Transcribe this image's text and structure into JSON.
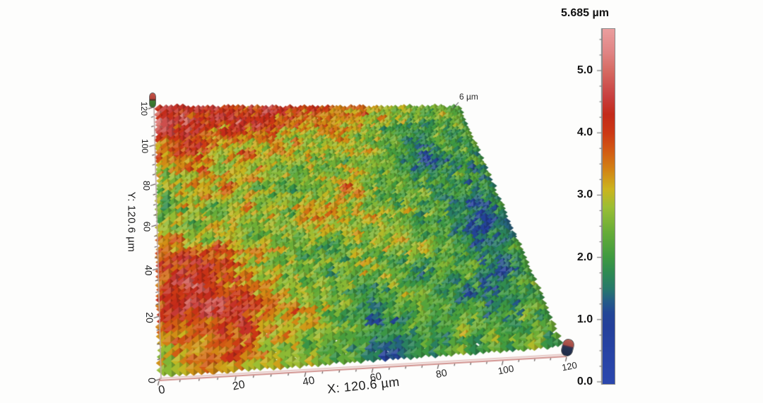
{
  "figure": {
    "background": "#fdfdfc",
    "z_scale_annotation": "6 µm",
    "colorbar": {
      "title": "5.685 µm",
      "unit": "µm",
      "min": 0.0,
      "max": 5.685,
      "tick_labels": [
        "0.0",
        "1.0",
        "2.0",
        "3.0",
        "4.0",
        "5.0"
      ]
    }
  },
  "chart_data": {
    "type": "heatmap",
    "representation": "3d-surface-topography",
    "title": "",
    "xlabel": "X: 120.6 µm",
    "ylabel": "Y: 120.6 µm",
    "zlabel_max": "5.685 µm",
    "z_box_height_annotation": "6 µm",
    "x_range_um": [
      0,
      120.6
    ],
    "y_range_um": [
      0,
      120.6
    ],
    "z_range_um": [
      0,
      5.685
    ],
    "x_ticks": [
      0,
      20,
      40,
      60,
      80,
      100,
      120
    ],
    "y_ticks": [
      0,
      20,
      40,
      60,
      80,
      100,
      120
    ],
    "z_ticks": [
      0.0,
      1.0,
      2.0,
      3.0,
      4.0,
      5.0
    ],
    "z_minor_tick_step": 0.25,
    "grid": false,
    "legend_position": "right-colorbar",
    "colormap": [
      {
        "z": 0.0,
        "color": "#2b47ad"
      },
      {
        "z": 0.5,
        "color": "#2743a4"
      },
      {
        "z": 0.9,
        "color": "#24409a"
      },
      {
        "z": 1.1,
        "color": "#234696"
      },
      {
        "z": 1.3,
        "color": "#255d86"
      },
      {
        "z": 1.5,
        "color": "#277a6a"
      },
      {
        "z": 1.75,
        "color": "#2e8a52"
      },
      {
        "z": 2.0,
        "color": "#3f9a40"
      },
      {
        "z": 2.4,
        "color": "#66ac38"
      },
      {
        "z": 2.8,
        "color": "#9abe34"
      },
      {
        "z": 3.1,
        "color": "#ccb41e"
      },
      {
        "z": 3.4,
        "color": "#d28414"
      },
      {
        "z": 3.7,
        "color": "#d25c14"
      },
      {
        "z": 4.0,
        "color": "#cc3815"
      },
      {
        "z": 4.3,
        "color": "#c32a1a"
      },
      {
        "z": 4.6,
        "color": "#c84040"
      },
      {
        "z": 5.0,
        "color": "#d66a62"
      },
      {
        "z": 5.3,
        "color": "#e08484"
      },
      {
        "z": 5.685,
        "color": "#ea9e9e"
      }
    ],
    "height_grid_um": {
      "description": "Coarse 12x12 estimate of surface height (um); rows from far edge (y=120) to near edge (y=0), columns x=0 to x=120",
      "rows": [
        [
          4.5,
          4.2,
          4.5,
          3.8,
          4.3,
          4.0,
          3.5,
          3.8,
          3.2,
          2.8,
          2.5,
          2.6
        ],
        [
          4.6,
          4.4,
          4.0,
          4.4,
          3.6,
          3.2,
          3.6,
          3.0,
          2.6,
          2.4,
          2.2,
          2.4
        ],
        [
          3.8,
          4.2,
          3.5,
          3.0,
          3.4,
          2.8,
          3.2,
          2.6,
          2.2,
          1.6,
          2.0,
          2.2
        ],
        [
          3.0,
          3.4,
          2.8,
          3.2,
          2.6,
          3.0,
          2.4,
          2.8,
          2.0,
          1.4,
          1.8,
          2.0
        ],
        [
          2.6,
          3.0,
          3.4,
          2.6,
          2.2,
          2.8,
          3.2,
          2.4,
          2.2,
          1.8,
          2.2,
          2.0
        ],
        [
          2.4,
          2.8,
          2.4,
          3.0,
          2.6,
          3.4,
          2.8,
          2.2,
          2.6,
          2.2,
          1.2,
          1.8
        ],
        [
          3.2,
          2.6,
          3.0,
          2.4,
          2.8,
          3.2,
          2.6,
          3.0,
          2.2,
          1.8,
          1.0,
          1.6
        ],
        [
          3.6,
          4.0,
          3.4,
          2.8,
          2.4,
          2.0,
          2.6,
          2.4,
          2.8,
          2.0,
          1.4,
          2.0
        ],
        [
          4.2,
          4.4,
          3.8,
          3.2,
          2.6,
          2.2,
          2.8,
          2.2,
          1.6,
          2.4,
          1.2,
          1.8
        ],
        [
          4.0,
          4.4,
          4.2,
          3.6,
          3.0,
          2.4,
          2.0,
          2.6,
          2.2,
          1.4,
          1.8,
          2.2
        ],
        [
          3.4,
          3.8,
          4.0,
          3.2,
          2.8,
          2.4,
          1.6,
          2.0,
          2.4,
          2.0,
          2.2,
          2.4
        ],
        [
          2.8,
          3.0,
          3.2,
          2.8,
          2.4,
          2.0,
          1.2,
          1.8,
          2.2,
          2.4,
          2.6,
          2.2
        ]
      ]
    }
  }
}
